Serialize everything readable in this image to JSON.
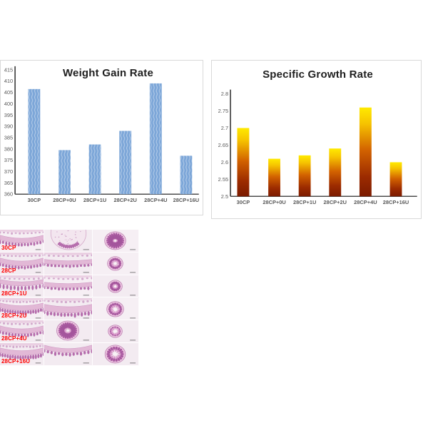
{
  "figure": {
    "background": "#ffffff"
  },
  "chart_data": [
    {
      "type": "bar",
      "title": "Weight Gain Rate",
      "categories": [
        "30CP",
        "28CP+0U",
        "28CP+1U",
        "28CP+2U",
        "28CP+4U",
        "28CP+16U"
      ],
      "values": [
        406.5,
        379.5,
        382,
        388,
        409,
        377
      ],
      "ylim": [
        360,
        415
      ],
      "ytick_labels": [
        "415",
        "410",
        "405",
        "400",
        "395",
        "390",
        "385",
        "380",
        "375",
        "370",
        "365",
        "360"
      ],
      "xlabel": "",
      "ylabel": "",
      "grid": false,
      "legend": "none",
      "bar_color": "#7CA6D8",
      "bar_fill_style": "patterned-light-blue-waves",
      "axis_color": "#4d4d4d",
      "tick_label_color": "#595959",
      "title_color": "#1f1f1f",
      "panel_border_color": "#d9d9d9"
    },
    {
      "type": "bar",
      "title": "Specific Growth Rate",
      "categories": [
        "30CP",
        "28CP+0U",
        "28CP+1U",
        "28CP+2U",
        "28CP+4U",
        "28CP+16U"
      ],
      "values": [
        2.7,
        2.61,
        2.62,
        2.64,
        2.76,
        2.6
      ],
      "ylim": [
        2.5,
        2.8
      ],
      "ytick_labels": [
        "2.8",
        "2.75",
        "2.7",
        "2.65",
        "2.6",
        "2.55",
        "2.5"
      ],
      "xlabel": "",
      "ylabel": "",
      "grid": false,
      "legend": "none",
      "bar_fill_style": "gradient-yellow-to-dark-red",
      "bar_gradient_stops": [
        [
          "0%",
          "#FFEA00"
        ],
        [
          "18%",
          "#F6C300"
        ],
        [
          "48%",
          "#D26200"
        ],
        [
          "78%",
          "#9C2B00"
        ],
        [
          "100%",
          "#7B1B00"
        ]
      ],
      "axis_color": "#4d4d4d",
      "tick_label_color": "#595959",
      "title_color": "#1f1f1f",
      "panel_border_color": "#d9d9d9"
    }
  ],
  "micrographs": {
    "content": "H&E stained intestinal cross-section micrographs, 6 rows x 3 columns",
    "columns": 3,
    "row_labels": [
      "30CP",
      "28CP",
      "28CP+1U",
      "28CP+2U",
      "28CP+4U",
      "28CP+16U"
    ],
    "label_color": "#ff0000",
    "stain_colors": {
      "tissue": "#c77fb5",
      "tissue_dark": "#a2539b",
      "tissue_light": "#ecc9e1",
      "background": "#f5eef3",
      "lumen": "#f8f2f6"
    },
    "cells": [
      [
        "villi-band-convex",
        "villi-disc-speckled",
        "villi-ring-dense"
      ],
      [
        "villi-band-convex",
        "villi-band-flat",
        "villi-ring-star-small"
      ],
      [
        "villi-band-long",
        "villi-band-flat",
        "villi-ring-solid-small"
      ],
      [
        "villi-band-dense",
        "villi-band-thick",
        "villi-ring-star"
      ],
      [
        "villi-band-convex",
        "villi-ring-radial-large",
        "villi-ring-spiky-small"
      ],
      [
        "villi-band-dense",
        "villi-band-arc-top",
        "villi-ring-star-large"
      ]
    ]
  }
}
